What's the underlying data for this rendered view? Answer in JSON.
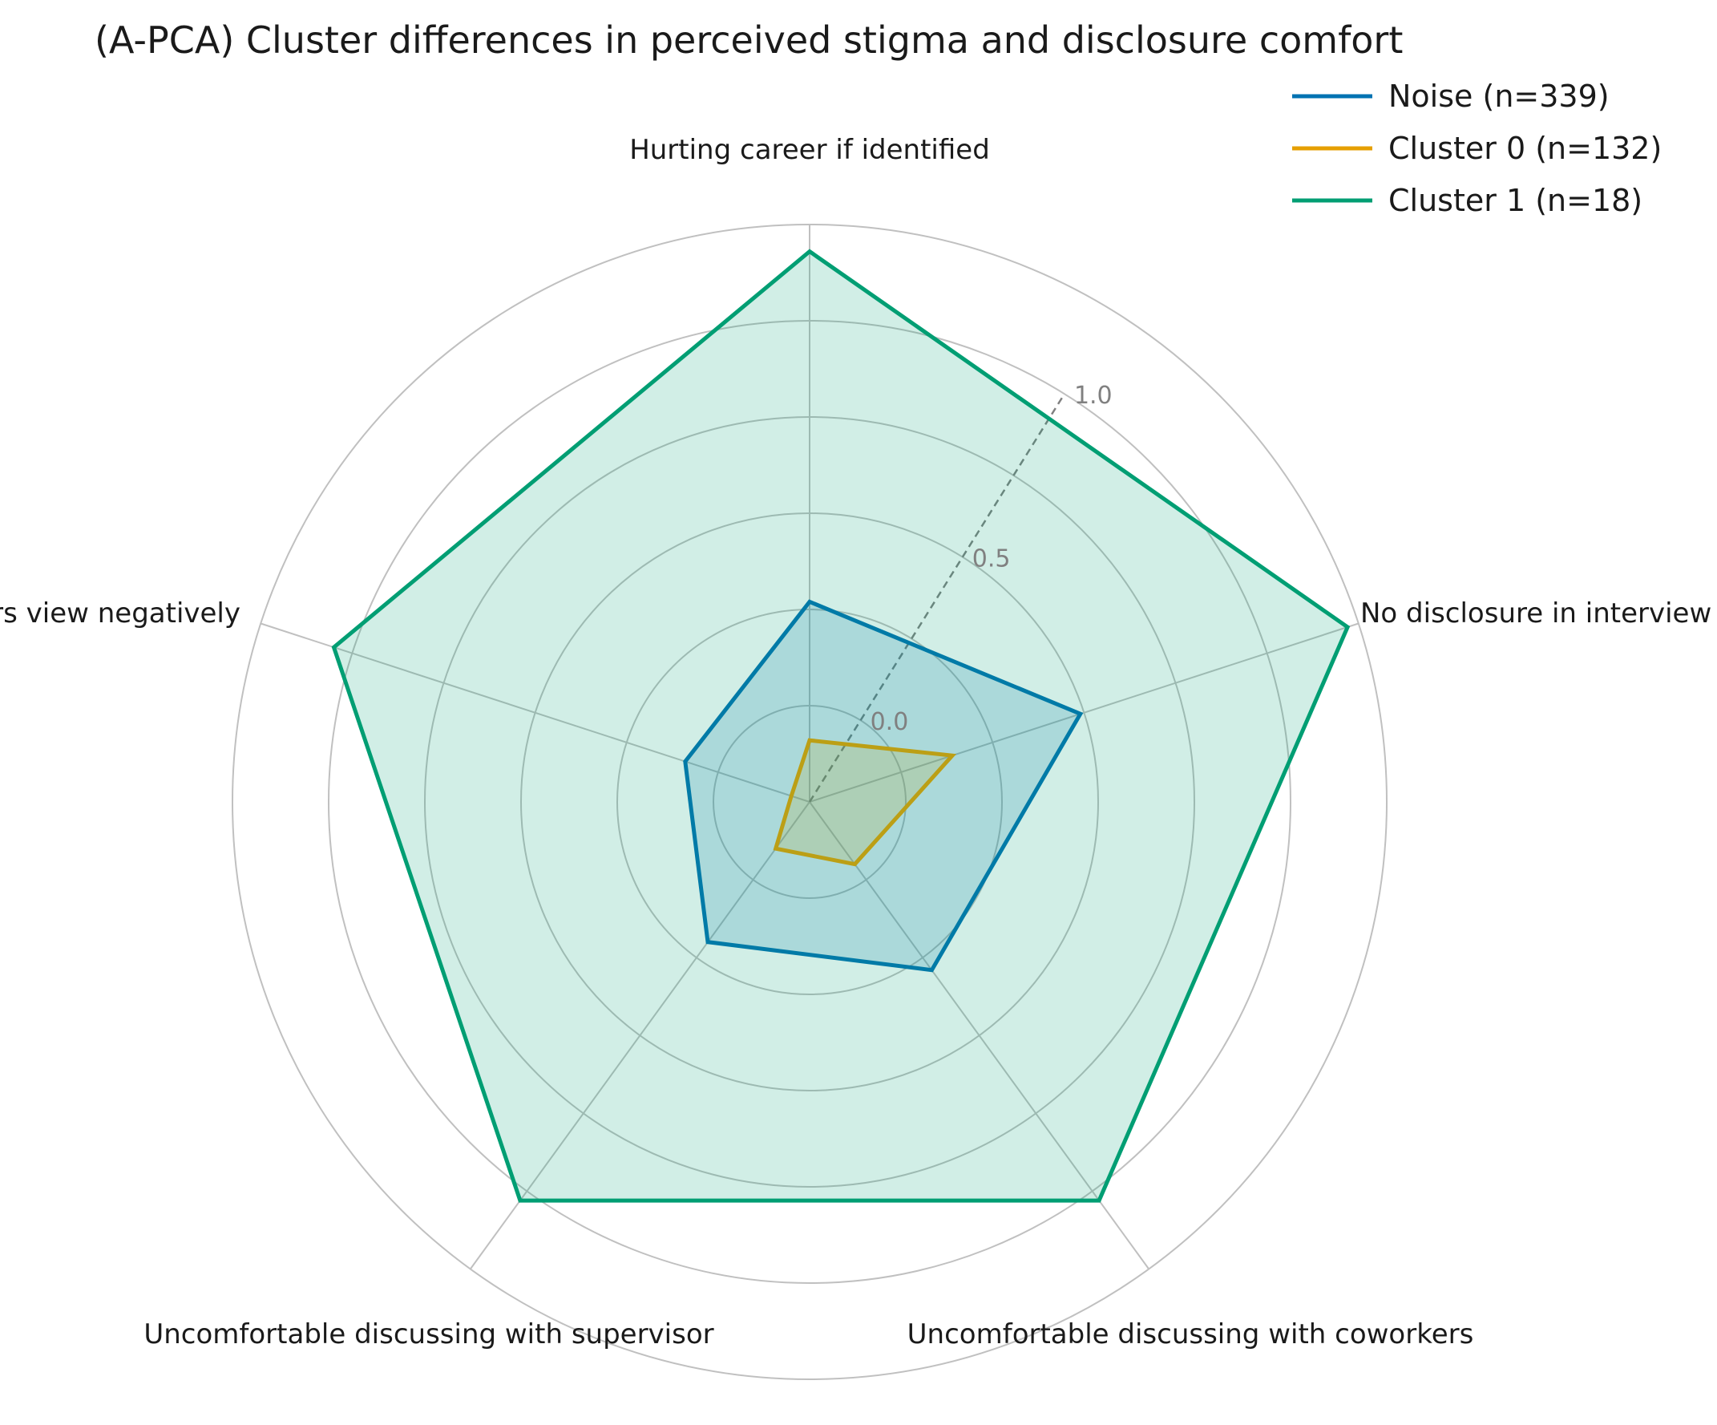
{
  "chart_data": {
    "type": "radar",
    "title": "(A-PCA) Cluster differences in perceived stigma and disclosure comfort",
    "axes": [
      "Hurting career if identified",
      "No disclosure in interview",
      "Uncomfortable discussing with coworkers",
      "Uncomfortable discussing with supervisor",
      "Peers view negatively"
    ],
    "r_ticks": [
      {
        "value": 0.0,
        "label": "0.0"
      },
      {
        "value": 0.5,
        "label": "0.5"
      },
      {
        "value": 1.0,
        "label": "1.0"
      }
    ],
    "r_range": [
      -0.25,
      1.25
    ],
    "grid_rings": [
      -0.25,
      0.0,
      0.25,
      0.5,
      0.75,
      1.0,
      1.25
    ],
    "ref_line_angle_deg": 32,
    "series": [
      {
        "name": "Noise (n=339)",
        "color": "#0072b2",
        "fill_opacity": 0.18,
        "values": [
          0.27,
          0.49,
          0.29,
          0.2,
          0.09
        ]
      },
      {
        "name": "Cluster 0 (n=132)",
        "color": "#e69f00",
        "fill_opacity": 0.18,
        "values": [
          -0.09,
          0.14,
          -0.05,
          -0.1,
          -0.2
        ]
      },
      {
        "name": "Cluster 1 (n=18)",
        "color": "#009e73",
        "fill_opacity": 0.18,
        "values": [
          1.18,
          1.22,
          1.03,
          1.03,
          1.05
        ]
      }
    ],
    "legend_position": "top-right",
    "grid": true
  }
}
